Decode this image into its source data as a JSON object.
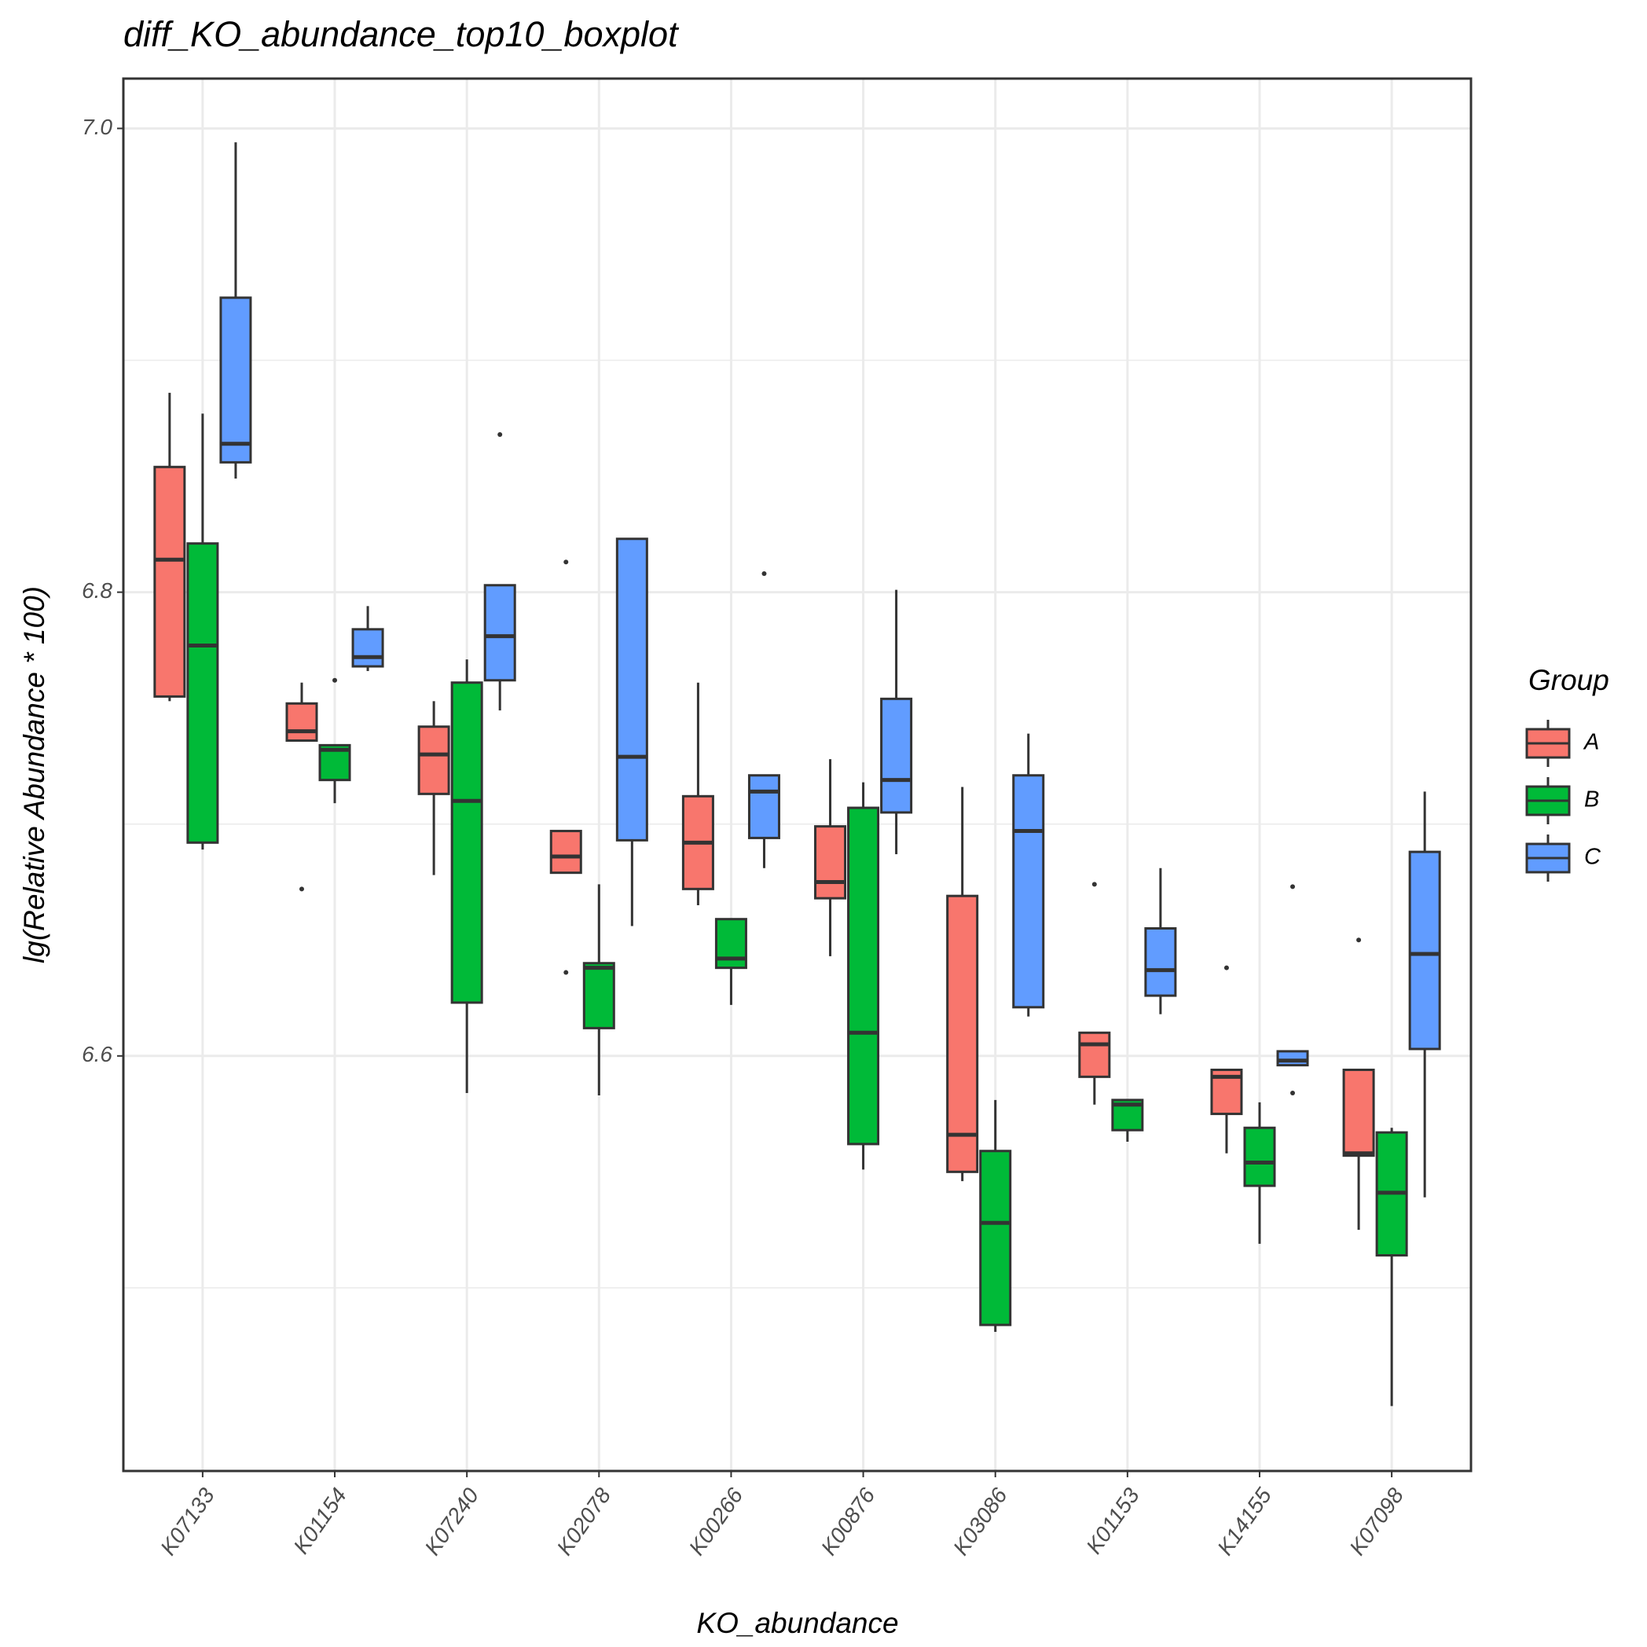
{
  "chart_data": {
    "type": "boxplot",
    "title": "diff_KO_abundance_top10_boxplot",
    "x_label": "KO_abundance",
    "y_label": "lg(Relative Abundance * 100)",
    "categories": [
      "K07133",
      "K01154",
      "K07240",
      "K02078",
      "K00266",
      "K00876",
      "K03086",
      "K01153",
      "K14155",
      "K07098"
    ],
    "ylim": [
      6.421,
      7.0215
    ],
    "yticks": [
      6.6,
      6.8,
      {
        "value": 7,
        "label": "7.0"
      }
    ],
    "minor_yticks": [
      6.5,
      6.7,
      6.9
    ],
    "grid": true,
    "legend_title": "Group",
    "legend_position": "right",
    "series": [
      {
        "name": "A",
        "color": "#f8766d",
        "values": [
          {
            "low": 6.753,
            "q1": 6.755,
            "median": 6.814,
            "q3": 6.854,
            "high": 6.886,
            "outliers": []
          },
          {
            "low": 6.736,
            "q1": 6.736,
            "median": 6.74,
            "q3": 6.752,
            "high": 6.761,
            "outliers": [
              6.672
            ]
          },
          {
            "low": 6.678,
            "q1": 6.713,
            "median": 6.73,
            "q3": 6.742,
            "high": 6.753,
            "outliers": []
          },
          {
            "low": 6.679,
            "q1": 6.679,
            "median": 6.686,
            "q3": 6.697,
            "high": 6.697,
            "outliers": [
              6.813,
              6.636
            ]
          },
          {
            "low": 6.665,
            "q1": 6.672,
            "median": 6.692,
            "q3": 6.712,
            "high": 6.761,
            "outliers": []
          },
          {
            "low": 6.643,
            "q1": 6.668,
            "median": 6.675,
            "q3": 6.699,
            "high": 6.728,
            "outliers": []
          },
          {
            "low": 6.546,
            "q1": 6.55,
            "median": 6.566,
            "q3": 6.669,
            "high": 6.716,
            "outliers": []
          },
          {
            "low": 6.579,
            "q1": 6.591,
            "median": 6.605,
            "q3": 6.61,
            "high": 6.61,
            "outliers": [
              6.674
            ]
          },
          {
            "low": 6.558,
            "q1": 6.575,
            "median": 6.591,
            "q3": 6.594,
            "high": 6.594,
            "outliers": [
              6.638
            ]
          },
          {
            "low": 6.525,
            "q1": 6.557,
            "median": 6.558,
            "q3": 6.594,
            "high": 6.594,
            "outliers": [
              6.65
            ]
          }
        ]
      },
      {
        "name": "B",
        "color": "#00ba38",
        "values": [
          {
            "low": 6.689,
            "q1": 6.692,
            "median": 6.777,
            "q3": 6.821,
            "high": 6.877,
            "outliers": []
          },
          {
            "low": 6.709,
            "q1": 6.719,
            "median": 6.732,
            "q3": 6.734,
            "high": 6.734,
            "outliers": [
              6.762
            ]
          },
          {
            "low": 6.584,
            "q1": 6.623,
            "median": 6.71,
            "q3": 6.761,
            "high": 6.771,
            "outliers": []
          },
          {
            "low": 6.583,
            "q1": 6.612,
            "median": 6.638,
            "q3": 6.64,
            "high": 6.674,
            "outliers": []
          },
          {
            "low": 6.622,
            "q1": 6.638,
            "median": 6.642,
            "q3": 6.659,
            "high": 6.659,
            "outliers": []
          },
          {
            "low": 6.551,
            "q1": 6.562,
            "median": 6.61,
            "q3": 6.707,
            "high": 6.718,
            "outliers": []
          },
          {
            "low": 6.481,
            "q1": 6.484,
            "median": 6.528,
            "q3": 6.559,
            "high": 6.581,
            "outliers": []
          },
          {
            "low": 6.563,
            "q1": 6.568,
            "median": 6.579,
            "q3": 6.581,
            "high": 6.581,
            "outliers": []
          },
          {
            "low": 6.519,
            "q1": 6.544,
            "median": 6.554,
            "q3": 6.569,
            "high": 6.58,
            "outliers": []
          },
          {
            "low": 6.449,
            "q1": 6.514,
            "median": 6.541,
            "q3": 6.567,
            "high": 6.569,
            "outliers": []
          }
        ]
      },
      {
        "name": "C",
        "color": "#619cff",
        "values": [
          {
            "low": 6.849,
            "q1": 6.856,
            "median": 6.864,
            "q3": 6.927,
            "high": 6.994,
            "outliers": []
          },
          {
            "low": 6.766,
            "q1": 6.768,
            "median": 6.772,
            "q3": 6.784,
            "high": 6.794,
            "outliers": []
          },
          {
            "low": 6.749,
            "q1": 6.762,
            "median": 6.781,
            "q3": 6.803,
            "high": 6.803,
            "outliers": [
              6.868
            ]
          },
          {
            "low": 6.656,
            "q1": 6.693,
            "median": 6.729,
            "q3": 6.823,
            "high": 6.823,
            "outliers": []
          },
          {
            "low": 6.681,
            "q1": 6.694,
            "median": 6.714,
            "q3": 6.721,
            "high": 6.721,
            "outliers": [
              6.808
            ]
          },
          {
            "low": 6.687,
            "q1": 6.705,
            "median": 6.719,
            "q3": 6.754,
            "high": 6.801,
            "outliers": []
          },
          {
            "low": 6.617,
            "q1": 6.621,
            "median": 6.697,
            "q3": 6.721,
            "high": 6.739,
            "outliers": []
          },
          {
            "low": 6.618,
            "q1": 6.626,
            "median": 6.637,
            "q3": 6.655,
            "high": 6.681,
            "outliers": []
          },
          {
            "low": 6.596,
            "q1": 6.596,
            "median": 6.598,
            "q3": 6.602,
            "high": 6.602,
            "outliers": [
              6.673,
              6.584
            ]
          },
          {
            "low": 6.539,
            "q1": 6.603,
            "median": 6.644,
            "q3": 6.688,
            "high": 6.714,
            "outliers": []
          }
        ]
      }
    ]
  }
}
